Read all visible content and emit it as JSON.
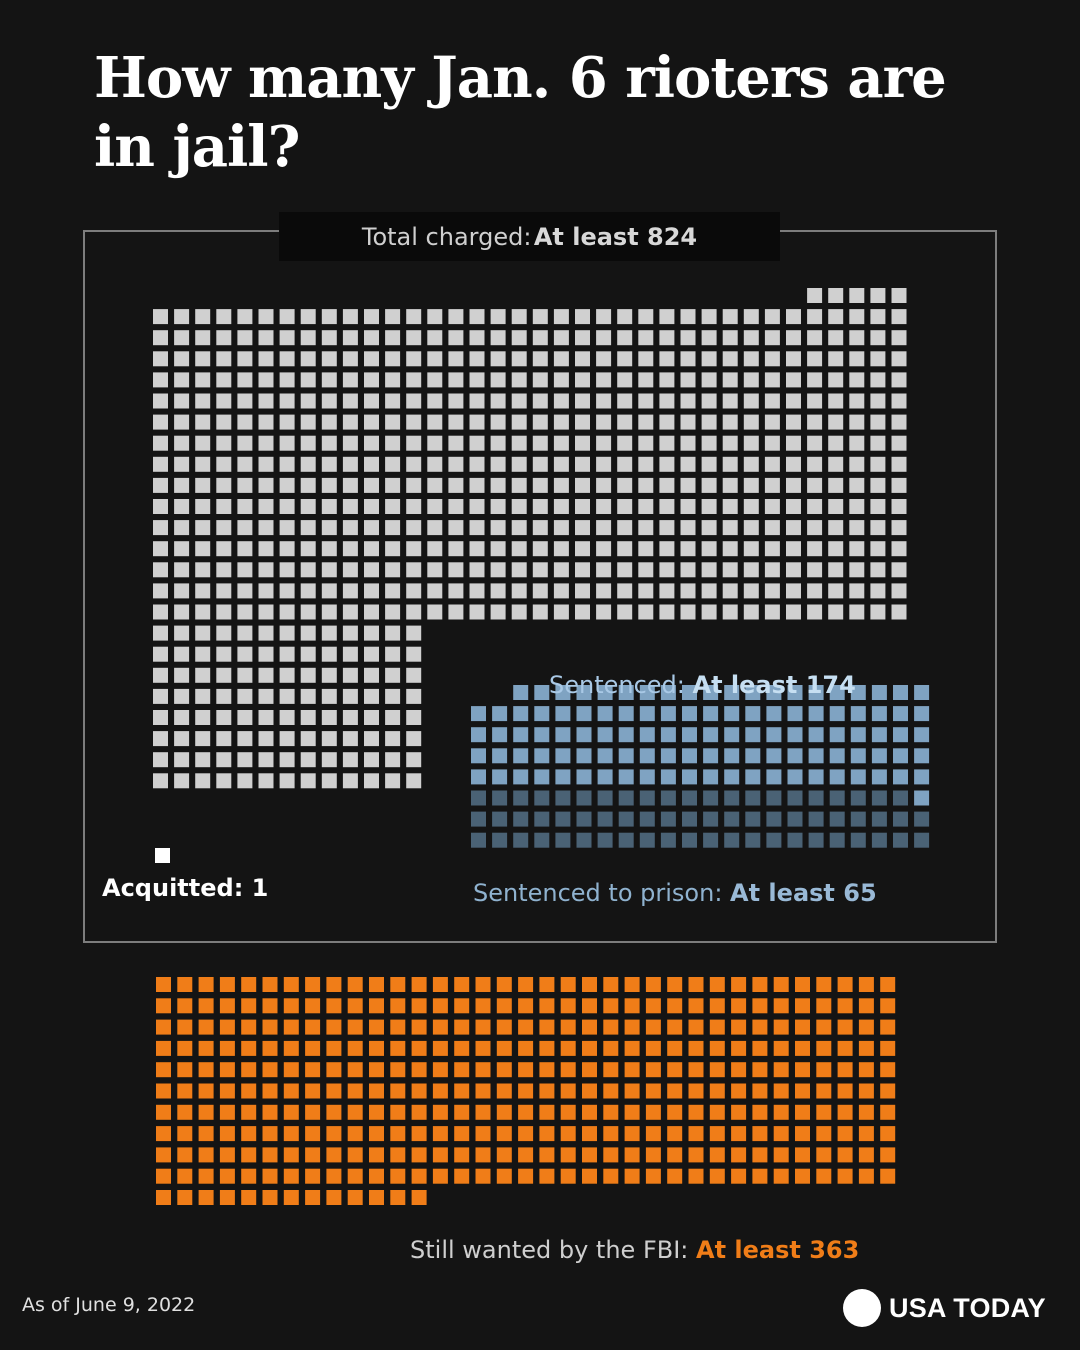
{
  "title": "How many Jan. 6 rioters are in jail?",
  "footnote": "As of June 9, 2022",
  "logo": {
    "text": "USA TODAY"
  },
  "colors": {
    "background": "#141414",
    "charged": "#d0d0d0",
    "sentenced": "#7fa3c2",
    "prison": "#4a6275",
    "acquitted": "#ffffff",
    "wanted": "#f07d18"
  },
  "chart_data": {
    "type": "waffle",
    "unit": "1 square = 1 person",
    "groups": [
      {
        "name": "Total charged",
        "prefix": "Total charged: ",
        "value_label": "At least 824",
        "value": 824
      },
      {
        "name": "Sentenced",
        "prefix": "Sentenced: ",
        "value_label": "At least  174",
        "value": 174
      },
      {
        "name": "Sentenced to prison",
        "prefix": "Sentenced to prison: ",
        "value_label": "At least 65",
        "value": 65
      },
      {
        "name": "Acquitted",
        "prefix": "Acquitted: ",
        "value_label": "1",
        "value": 1
      },
      {
        "name": "Still wanted by the FBI",
        "prefix": "Still wanted by the FBI: ",
        "value_label": "At least 363",
        "value": 363
      }
    ]
  }
}
